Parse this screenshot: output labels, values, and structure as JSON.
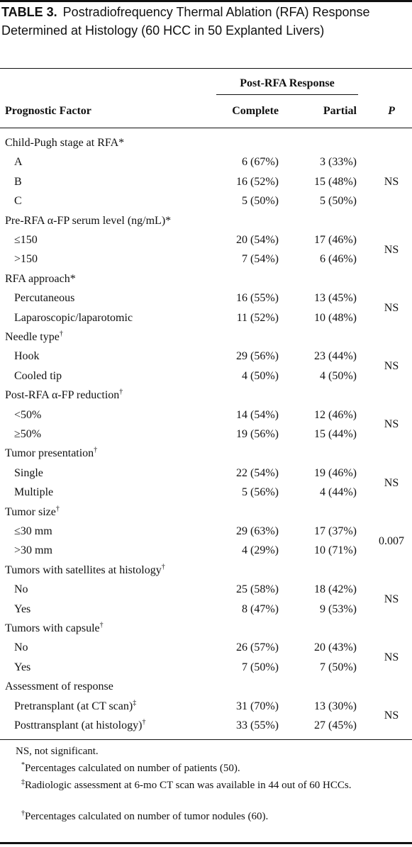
{
  "table": {
    "label": "TABLE 3.",
    "title": "Postradiofrequency Thermal Ablation (RFA) Response Determined at Histology (60 HCC in 50 Explanted Livers)",
    "header": {
      "span": "Post-RFA Response",
      "factor": "Prognostic Factor",
      "complete": "Complete",
      "partial": "Partial",
      "p": "P"
    },
    "groups": [
      {
        "label": "Child-Pugh stage at RFA*",
        "p": "NS",
        "rows": [
          {
            "label": "A",
            "complete": "6 (67%)",
            "partial": "3 (33%)"
          },
          {
            "label": "B",
            "complete": "16 (52%)",
            "partial": "15 (48%)"
          },
          {
            "label": "C",
            "complete": "5 (50%)",
            "partial": "5 (50%)"
          }
        ]
      },
      {
        "label": "Pre-RFA α-FP serum level (ng/mL)*",
        "p": "NS",
        "rows": [
          {
            "label": "≤150",
            "complete": "20 (54%)",
            "partial": "17 (46%)"
          },
          {
            "label": ">150",
            "complete": "7 (54%)",
            "partial": "6 (46%)"
          }
        ]
      },
      {
        "label": "RFA approach*",
        "p": "NS",
        "rows": [
          {
            "label": "Percutaneous",
            "complete": "16 (55%)",
            "partial": "13 (45%)"
          },
          {
            "label": "Laparoscopic/laparotomic",
            "complete": "11 (52%)",
            "partial": "10 (48%)"
          }
        ]
      },
      {
        "label": "Needle type",
        "mark": "†",
        "p": "NS",
        "rows": [
          {
            "label": "Hook",
            "complete": "29 (56%)",
            "partial": "23 (44%)"
          },
          {
            "label": "Cooled tip",
            "complete": "4 (50%)",
            "partial": "4 (50%)"
          }
        ]
      },
      {
        "label": "Post-RFA α-FP reduction",
        "mark": "†",
        "p": "NS",
        "rows": [
          {
            "label": "<50%",
            "complete": "14 (54%)",
            "partial": "12 (46%)"
          },
          {
            "label": "≥50%",
            "complete": "19 (56%)",
            "partial": "15 (44%)"
          }
        ]
      },
      {
        "label": "Tumor presentation",
        "mark": "†",
        "p": "NS",
        "rows": [
          {
            "label": "Single",
            "complete": "22 (54%)",
            "partial": "19 (46%)"
          },
          {
            "label": "Multiple",
            "complete": "5 (56%)",
            "partial": "4 (44%)"
          }
        ]
      },
      {
        "label": "Tumor size",
        "mark": "†",
        "p": "0.007",
        "rows": [
          {
            "label": "≤30 mm",
            "complete": "29 (63%)",
            "partial": "17 (37%)"
          },
          {
            "label": ">30 mm",
            "complete": "4 (29%)",
            "partial": "10 (71%)"
          }
        ]
      },
      {
        "label": "Tumors with satellites at histology",
        "mark": "†",
        "p": "NS",
        "rows": [
          {
            "label": "No",
            "complete": "25 (58%)",
            "partial": "18 (42%)"
          },
          {
            "label": "Yes",
            "complete": "8 (47%)",
            "partial": "9 (53%)"
          }
        ]
      },
      {
        "label": "Tumors with capsule",
        "mark": "†",
        "p": "NS",
        "rows": [
          {
            "label": "No",
            "complete": "26 (57%)",
            "partial": "20 (43%)"
          },
          {
            "label": "Yes",
            "complete": "7 (50%)",
            "partial": "7 (50%)"
          }
        ]
      },
      {
        "label": "Assessment of response",
        "p": "NS",
        "rows": [
          {
            "label": "Pretransplant (at CT scan)",
            "mark": "‡",
            "complete": "31 (70%)",
            "partial": "13 (30%)"
          },
          {
            "label": "Posttransplant (at histology)",
            "mark": "†",
            "complete": "33 (55%)",
            "partial": "27 (45%)"
          }
        ]
      }
    ],
    "footnotes": [
      {
        "text": "NS, not significant."
      },
      {
        "mark": "*",
        "text": "Percentages calculated on number of patients (50)."
      },
      {
        "mark": "‡",
        "text": "Radiologic assessment at 6-mo CT scan was available in 44 out of 60 HCCs."
      },
      {
        "mark": "†",
        "text": "Percentages calculated on number of tumor nodules (60)."
      }
    ]
  }
}
